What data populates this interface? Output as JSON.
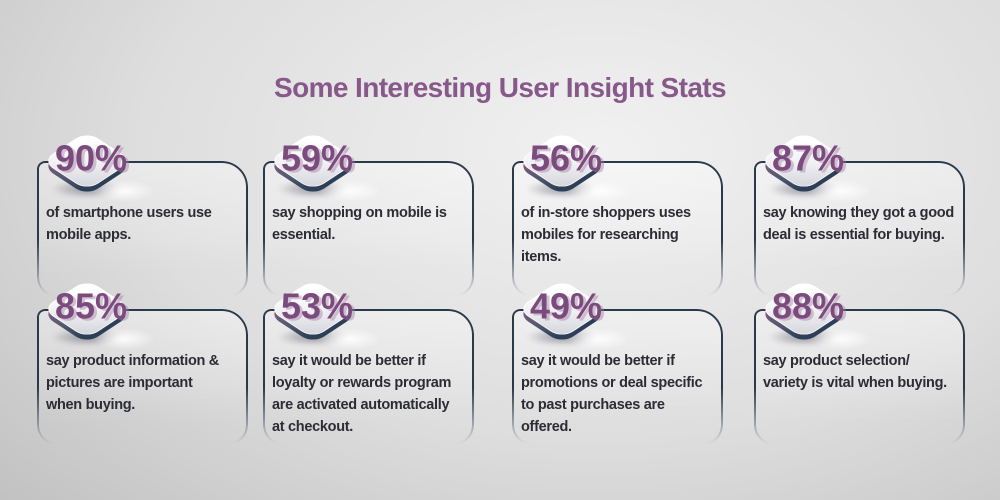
{
  "title": "Some Interesting User Insight Stats",
  "theme": {
    "title_color": "#87588a",
    "percent_color": "#7b4b7d",
    "card_border_color": "#2b3a4a",
    "body_text_color": "#2c2c34",
    "badge_rim_left_color": "#7d5a80",
    "badge_rim_right_color": "#2c3f56",
    "background_gray": "#c2c2c2"
  },
  "cards": [
    {
      "percent": "90%",
      "text": [
        "of smartphone users use",
        "mobile apps."
      ]
    },
    {
      "percent": "59%",
      "text": [
        "say shopping on mobile is",
        "essential."
      ]
    },
    {
      "percent": "56%",
      "text": [
        "of in-store shoppers uses",
        "mobiles for researching",
        "items."
      ]
    },
    {
      "percent": "87%",
      "text": [
        "say knowing they got a good",
        "deal is essential for buying."
      ]
    },
    {
      "percent": "85%",
      "text": [
        "say product information &",
        "pictures are important",
        "when buying."
      ]
    },
    {
      "percent": "53%",
      "text": [
        "say it would be better if",
        "loyalty or rewards program",
        "are activated automatically",
        "at checkout."
      ]
    },
    {
      "percent": "49%",
      "text": [
        "say it would be better if",
        "promotions or deal specific",
        "to past purchases are",
        "offered."
      ]
    },
    {
      "percent": "88%",
      "text": [
        "say product selection/",
        "variety is vital when buying."
      ]
    }
  ],
  "chart_data": {
    "type": "table",
    "title": "Some Interesting User Insight Stats",
    "unit": "%",
    "categories": [
      "of smartphone users use mobile apps.",
      "say shopping on mobile is essential.",
      "of in-store shoppers uses mobiles for researching items.",
      "say knowing they got a good deal is essential for buying.",
      "say product information & pictures are important when buying.",
      "say it would be better if loyalty or rewards program are activated automatically at checkout.",
      "say it would be better if promotions or deal specific to past purchases are offered.",
      "say product selection/ variety is vital when buying."
    ],
    "values": [
      90,
      59,
      56,
      87,
      85,
      53,
      49,
      88
    ],
    "layout": "4x2 grid of stat cards"
  }
}
